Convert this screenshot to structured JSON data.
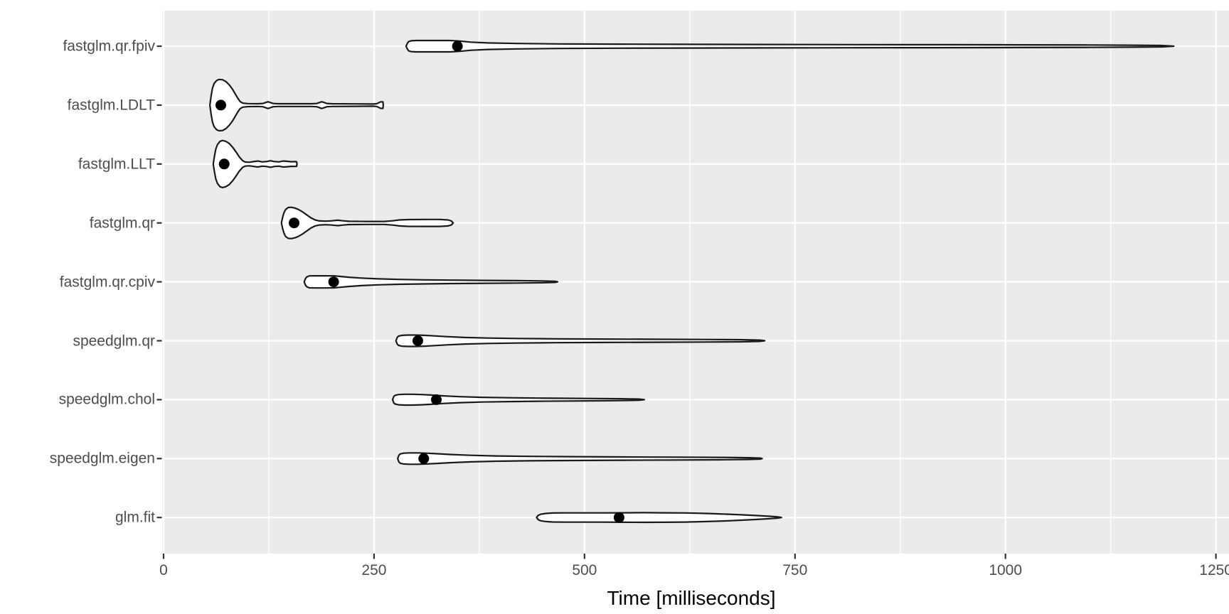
{
  "chart_data": {
    "type": "violin",
    "orientation": "horizontal",
    "title": "",
    "xlabel": "Time [milliseconds]",
    "ylabel": "",
    "xlim": [
      0,
      1250
    ],
    "x_major_ticks": [
      0,
      250,
      500,
      750,
      1000,
      1250
    ],
    "x_minor_gridlines": [
      125,
      375,
      625,
      875,
      1125
    ],
    "grid": true,
    "legend": false,
    "categories": [
      "fastglm.qr.fpiv",
      "fastglm.LDLT",
      "fastglm.LLT",
      "fastglm.qr",
      "fastglm.qr.cpiv",
      "speedglm.qr",
      "speedglm.chol",
      "speedglm.eigen",
      "glm.fit"
    ],
    "series": [
      {
        "name": "fastglm.qr.fpiv",
        "point_ms": 349,
        "outline": [
          [
            288,
            0
          ],
          [
            289.5,
            0.1
          ],
          [
            291,
            0.17
          ],
          [
            294,
            0.2
          ],
          [
            300,
            0.21
          ],
          [
            320,
            0.21
          ],
          [
            340,
            0.21
          ],
          [
            352,
            0.19
          ],
          [
            365,
            0.15
          ],
          [
            385,
            0.12
          ],
          [
            420,
            0.1
          ],
          [
            470,
            0.085
          ],
          [
            540,
            0.075
          ],
          [
            620,
            0.068
          ],
          [
            720,
            0.062
          ],
          [
            820,
            0.058
          ],
          [
            920,
            0.055
          ],
          [
            1020,
            0.05
          ],
          [
            1100,
            0.045
          ],
          [
            1150,
            0.038
          ],
          [
            1185,
            0.025
          ],
          [
            1200,
            0
          ]
        ]
      },
      {
        "name": "fastglm.LDLT",
        "point_ms": 68,
        "outline": [
          [
            55,
            0
          ],
          [
            56.5,
            0.35
          ],
          [
            58,
            0.62
          ],
          [
            60,
            0.8
          ],
          [
            63,
            0.91
          ],
          [
            66,
            0.95
          ],
          [
            70,
            0.94
          ],
          [
            74,
            0.87
          ],
          [
            78,
            0.75
          ],
          [
            82,
            0.58
          ],
          [
            85,
            0.42
          ],
          [
            88,
            0.26
          ],
          [
            91,
            0.13
          ],
          [
            94,
            0.075
          ],
          [
            100,
            0.055
          ],
          [
            112,
            0.05
          ],
          [
            118,
            0.06
          ],
          [
            124,
            0.125
          ],
          [
            130,
            0.06
          ],
          [
            136,
            0.05
          ],
          [
            160,
            0.05
          ],
          [
            176,
            0.05
          ],
          [
            182,
            0.06
          ],
          [
            188,
            0.125
          ],
          [
            194,
            0.06
          ],
          [
            200,
            0.05
          ],
          [
            230,
            0.045
          ],
          [
            248,
            0.04
          ],
          [
            253,
            0.05
          ],
          [
            258,
            0.12
          ],
          [
            260.5,
            0.12
          ],
          [
            261,
            0
          ]
        ]
      },
      {
        "name": "fastglm.LLT",
        "point_ms": 72,
        "outline": [
          [
            59,
            0
          ],
          [
            60.5,
            0.3
          ],
          [
            62,
            0.55
          ],
          [
            64,
            0.72
          ],
          [
            67,
            0.84
          ],
          [
            70,
            0.87
          ],
          [
            74,
            0.84
          ],
          [
            78,
            0.76
          ],
          [
            82,
            0.62
          ],
          [
            86,
            0.45
          ],
          [
            90,
            0.26
          ],
          [
            94,
            0.12
          ],
          [
            97,
            0.075
          ],
          [
            102,
            0.065
          ],
          [
            107,
            0.09
          ],
          [
            112,
            0.11
          ],
          [
            117,
            0.08
          ],
          [
            122,
            0.09
          ],
          [
            127,
            0.12
          ],
          [
            132,
            0.09
          ],
          [
            137,
            0.08
          ],
          [
            142,
            0.11
          ],
          [
            147,
            0.1
          ],
          [
            152,
            0.085
          ],
          [
            156,
            0.09
          ],
          [
            158,
            0.085
          ],
          [
            158.5,
            0
          ]
        ]
      },
      {
        "name": "fastglm.qr",
        "point_ms": 155,
        "outline": [
          [
            140,
            0
          ],
          [
            141.5,
            0.22
          ],
          [
            143,
            0.38
          ],
          [
            145,
            0.5
          ],
          [
            148,
            0.57
          ],
          [
            152,
            0.58
          ],
          [
            156,
            0.55
          ],
          [
            160,
            0.5
          ],
          [
            165,
            0.41
          ],
          [
            170,
            0.3
          ],
          [
            175,
            0.19
          ],
          [
            180,
            0.11
          ],
          [
            185,
            0.075
          ],
          [
            193,
            0.065
          ],
          [
            200,
            0.08
          ],
          [
            207,
            0.1
          ],
          [
            213,
            0.08
          ],
          [
            220,
            0.06
          ],
          [
            240,
            0.055
          ],
          [
            262,
            0.055
          ],
          [
            272,
            0.08
          ],
          [
            280,
            0.11
          ],
          [
            290,
            0.125
          ],
          [
            310,
            0.13
          ],
          [
            328,
            0.13
          ],
          [
            338,
            0.11
          ],
          [
            342,
            0.07
          ],
          [
            344,
            0
          ]
        ]
      },
      {
        "name": "fastglm.qr.cpiv",
        "point_ms": 202,
        "outline": [
          [
            167,
            0
          ],
          [
            168.5,
            0.12
          ],
          [
            170,
            0.18
          ],
          [
            173,
            0.22
          ],
          [
            180,
            0.225
          ],
          [
            192,
            0.225
          ],
          [
            203,
            0.22
          ],
          [
            210,
            0.2
          ],
          [
            220,
            0.17
          ],
          [
            235,
            0.14
          ],
          [
            255,
            0.11
          ],
          [
            280,
            0.09
          ],
          [
            310,
            0.075
          ],
          [
            345,
            0.062
          ],
          [
            385,
            0.052
          ],
          [
            420,
            0.045
          ],
          [
            450,
            0.035
          ],
          [
            465,
            0.02
          ],
          [
            468,
            0
          ]
        ]
      },
      {
        "name": "speedglm.qr",
        "point_ms": 302,
        "outline": [
          [
            276,
            0
          ],
          [
            277.5,
            0.12
          ],
          [
            279,
            0.17
          ],
          [
            283,
            0.2
          ],
          [
            290,
            0.21
          ],
          [
            300,
            0.21
          ],
          [
            310,
            0.2
          ],
          [
            322,
            0.18
          ],
          [
            338,
            0.15
          ],
          [
            358,
            0.12
          ],
          [
            385,
            0.1
          ],
          [
            420,
            0.085
          ],
          [
            465,
            0.072
          ],
          [
            520,
            0.062
          ],
          [
            580,
            0.055
          ],
          [
            640,
            0.048
          ],
          [
            685,
            0.04
          ],
          [
            708,
            0.025
          ],
          [
            714,
            0
          ]
        ]
      },
      {
        "name": "speedglm.chol",
        "point_ms": 324,
        "outline": [
          [
            272,
            0
          ],
          [
            273.5,
            0.12
          ],
          [
            275,
            0.16
          ],
          [
            279,
            0.19
          ],
          [
            286,
            0.2
          ],
          [
            296,
            0.2
          ],
          [
            306,
            0.19
          ],
          [
            318,
            0.17
          ],
          [
            333,
            0.14
          ],
          [
            352,
            0.11
          ],
          [
            378,
            0.088
          ],
          [
            410,
            0.07
          ],
          [
            445,
            0.058
          ],
          [
            480,
            0.05
          ],
          [
            515,
            0.042
          ],
          [
            545,
            0.035
          ],
          [
            565,
            0.022
          ],
          [
            571,
            0
          ]
        ]
      },
      {
        "name": "speedglm.eigen",
        "point_ms": 309,
        "outline": [
          [
            278,
            0
          ],
          [
            279.5,
            0.12
          ],
          [
            281,
            0.17
          ],
          [
            285,
            0.2
          ],
          [
            292,
            0.21
          ],
          [
            302,
            0.21
          ],
          [
            312,
            0.2
          ],
          [
            325,
            0.18
          ],
          [
            342,
            0.15
          ],
          [
            365,
            0.12
          ],
          [
            395,
            0.098
          ],
          [
            435,
            0.082
          ],
          [
            485,
            0.07
          ],
          [
            545,
            0.06
          ],
          [
            610,
            0.052
          ],
          [
            660,
            0.044
          ],
          [
            695,
            0.032
          ],
          [
            709,
            0.018
          ],
          [
            711,
            0
          ]
        ]
      },
      {
        "name": "glm.fit",
        "point_ms": 541,
        "outline": [
          [
            443,
            0
          ],
          [
            445,
            0.08
          ],
          [
            448,
            0.12
          ],
          [
            454,
            0.15
          ],
          [
            462,
            0.165
          ],
          [
            475,
            0.17
          ],
          [
            495,
            0.17
          ],
          [
            520,
            0.172
          ],
          [
            545,
            0.175
          ],
          [
            570,
            0.178
          ],
          [
            595,
            0.175
          ],
          [
            620,
            0.168
          ],
          [
            645,
            0.15
          ],
          [
            668,
            0.125
          ],
          [
            688,
            0.098
          ],
          [
            705,
            0.072
          ],
          [
            720,
            0.045
          ],
          [
            730,
            0.02
          ],
          [
            734,
            0
          ]
        ]
      }
    ],
    "colors": {
      "panel_background": "#EBEBEB",
      "grid": "#FFFFFF",
      "violin_fill": "#FFFFFF",
      "violin_stroke": "#1A1A1A",
      "point": "#000000",
      "tick_mark": "#333333",
      "tick_label": "#4D4D4D",
      "axis_title": "#000000"
    }
  }
}
